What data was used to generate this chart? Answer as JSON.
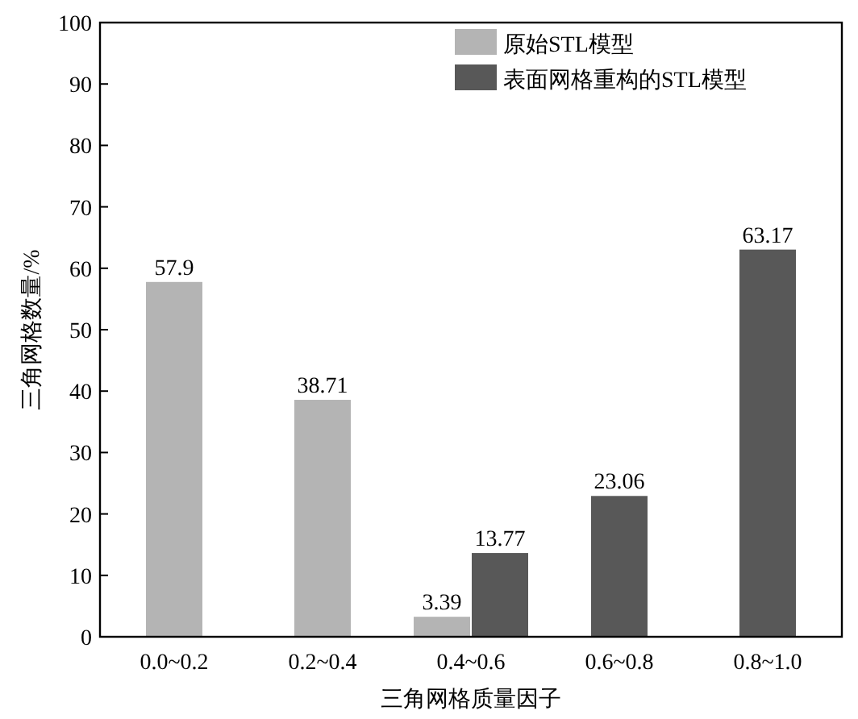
{
  "chart_data": {
    "type": "bar",
    "xlabel": "三角网格质量因子",
    "ylabel": "三角网格数量/%",
    "categories": [
      "0.0~0.2",
      "0.2~0.4",
      "0.4~0.6",
      "0.6~0.8",
      "0.8~1.0"
    ],
    "series": [
      {
        "name": "原始STL模型",
        "color": "#b4b4b4",
        "values": [
          57.9,
          38.71,
          3.39,
          null,
          null
        ]
      },
      {
        "name": "表面网格重构的STL模型",
        "color": "#585858",
        "values": [
          null,
          null,
          13.77,
          23.06,
          63.17
        ]
      }
    ],
    "ylim": [
      0,
      100
    ],
    "yticks": [
      0,
      10,
      20,
      30,
      40,
      50,
      60,
      70,
      80,
      90,
      100
    ],
    "data_labels": true,
    "legend": "top right"
  }
}
